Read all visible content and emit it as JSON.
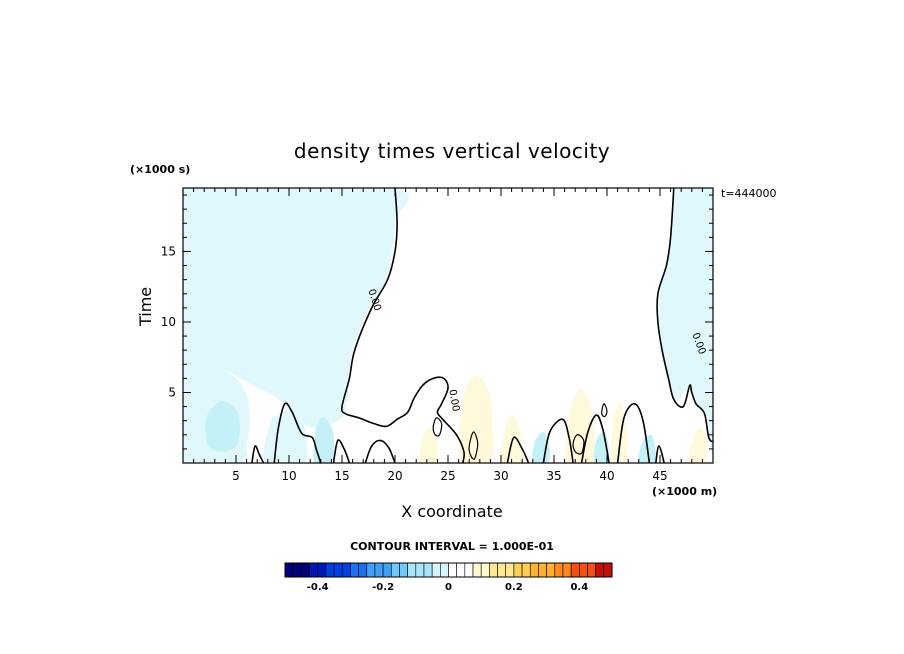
{
  "chart_data": {
    "type": "heatmap",
    "title": "density times vertical velocity",
    "xlabel": "X coordinate",
    "ylabel": "Time",
    "x_units": "(×1000 m)",
    "y_units": "(×1000 s)",
    "x_ticks": [
      "5",
      "10",
      "15",
      "20",
      "25",
      "30",
      "35",
      "40",
      "45"
    ],
    "y_ticks": [
      "5",
      "10",
      "15"
    ],
    "xlim": [
      0,
      50
    ],
    "ylim": [
      0,
      19.5
    ],
    "time_stamp": "t=444000",
    "contour_interval_label": "CONTOUR INTERVAL = 1.000E-01",
    "contour_labels": [
      "0.00",
      "0.00",
      "0.00"
    ],
    "colorbar": {
      "range": [
        -0.5,
        0.5
      ],
      "ticks": [
        "-0.4",
        "-0.2",
        "0",
        "0.2",
        "0.4"
      ],
      "colors": [
        "#00007a",
        "#0018b8",
        "#0040e0",
        "#1a70f0",
        "#40a0f8",
        "#70c8fc",
        "#a8e4fc",
        "#d8f4fc",
        "#ffffff",
        "#fff8d0",
        "#ffe890",
        "#ffd050",
        "#ffb030",
        "#ff8820",
        "#f05010",
        "#c01008"
      ]
    },
    "zero_contours": [
      {
        "name": "left",
        "points": [
          [
            20.0,
            19.5
          ],
          [
            20.2,
            17
          ],
          [
            20.0,
            15
          ],
          [
            19.3,
            13
          ],
          [
            17.8,
            11
          ],
          [
            16.2,
            8
          ],
          [
            15.7,
            6
          ],
          [
            15.0,
            4
          ],
          [
            15.3,
            3.5
          ],
          [
            16.6,
            3.2
          ],
          [
            18.0,
            2.8
          ],
          [
            19.2,
            2.6
          ],
          [
            20.2,
            3.1
          ],
          [
            21.2,
            3.6
          ],
          [
            21.8,
            4.6
          ],
          [
            22.6,
            5.5
          ],
          [
            23.6,
            6.0
          ],
          [
            24.6,
            6.0
          ],
          [
            25.0,
            5.3
          ],
          [
            24.4,
            4.2
          ],
          [
            24.0,
            3.6
          ],
          [
            24.5,
            3.1
          ],
          [
            25.8,
            2.0
          ],
          [
            26.5,
            0.8
          ],
          [
            26.4,
            0
          ]
        ]
      },
      {
        "name": "right",
        "points": [
          [
            46.3,
            19.5
          ],
          [
            46.0,
            16
          ],
          [
            45.6,
            14
          ],
          [
            44.8,
            12
          ],
          [
            44.8,
            10
          ],
          [
            45.2,
            8
          ],
          [
            45.8,
            6
          ],
          [
            46.3,
            4.5
          ],
          [
            47.2,
            4.0
          ],
          [
            47.8,
            5.5
          ],
          [
            48.0,
            5.0
          ],
          [
            48.4,
            4.2
          ],
          [
            49.2,
            3.5
          ],
          [
            49.6,
            1.8
          ],
          [
            50,
            1.5
          ]
        ]
      },
      {
        "name": "bump-1",
        "points": [
          [
            6.5,
            0
          ],
          [
            6.8,
            1.2
          ],
          [
            7.2,
            0.6
          ],
          [
            7.6,
            0
          ]
        ]
      },
      {
        "name": "bump-2",
        "points": [
          [
            8.6,
            0
          ],
          [
            9.0,
            2.5
          ],
          [
            9.6,
            4.2
          ],
          [
            10.3,
            3.6
          ],
          [
            11.2,
            2.1
          ],
          [
            12.2,
            1.8
          ],
          [
            12.6,
            0.9
          ],
          [
            13.0,
            0
          ]
        ]
      },
      {
        "name": "bump-3",
        "points": [
          [
            14.2,
            0
          ],
          [
            14.6,
            1.6
          ],
          [
            15.2,
            1.0
          ],
          [
            15.7,
            0
          ]
        ]
      },
      {
        "name": "bump-4",
        "points": [
          [
            17.2,
            0
          ],
          [
            17.8,
            1.2
          ],
          [
            18.6,
            1.6
          ],
          [
            19.4,
            1.1
          ],
          [
            20.0,
            0
          ]
        ]
      },
      {
        "name": "bump-5",
        "points": [
          [
            30.6,
            0
          ],
          [
            31.2,
            1.8
          ],
          [
            32.0,
            1.0
          ],
          [
            32.6,
            0
          ]
        ]
      },
      {
        "name": "bump-6",
        "points": [
          [
            34.0,
            0
          ],
          [
            34.6,
            2.2
          ],
          [
            35.8,
            3.1
          ],
          [
            36.4,
            1.9
          ],
          [
            36.8,
            0
          ]
        ]
      },
      {
        "name": "bump-7",
        "points": [
          [
            37.6,
            0
          ],
          [
            38.2,
            2.2
          ],
          [
            39.0,
            3.4
          ],
          [
            39.6,
            2.4
          ],
          [
            40.2,
            0
          ]
        ]
      },
      {
        "name": "bump-8",
        "points": [
          [
            41.0,
            0
          ],
          [
            41.6,
            3.2
          ],
          [
            42.6,
            4.2
          ],
          [
            43.4,
            3.0
          ],
          [
            44.0,
            0
          ]
        ]
      },
      {
        "name": "bump-9",
        "points": [
          [
            44.6,
            0
          ],
          [
            44.9,
            1.2
          ],
          [
            45.4,
            0
          ]
        ]
      }
    ],
    "closed_contours": [
      {
        "name": "loop-a",
        "points": [
          [
            27.0,
            1.2
          ],
          [
            27.4,
            2.2
          ],
          [
            27.8,
            1.4
          ],
          [
            27.5,
            0.3
          ],
          [
            27.1,
            0.6
          ]
        ]
      },
      {
        "name": "loop-b",
        "points": [
          [
            36.8,
            1.4
          ],
          [
            37.2,
            2.0
          ],
          [
            37.8,
            1.6
          ],
          [
            37.6,
            0.7
          ],
          [
            37.0,
            0.8
          ]
        ]
      },
      {
        "name": "loop-c",
        "points": [
          [
            23.6,
            2.5
          ],
          [
            23.9,
            3.2
          ],
          [
            24.4,
            2.8
          ],
          [
            24.2,
            2.0
          ],
          [
            23.8,
            2.0
          ]
        ]
      },
      {
        "name": "loop-d",
        "points": [
          [
            39.5,
            3.5
          ],
          [
            39.7,
            4.2
          ],
          [
            40.0,
            3.7
          ],
          [
            39.8,
            3.3
          ]
        ]
      }
    ],
    "shaded_regions": [
      {
        "value": -0.1,
        "points": [
          [
            0,
            0
          ],
          [
            0,
            6.5
          ],
          [
            3,
            6.8
          ],
          [
            5.5,
            5.6
          ],
          [
            6.3,
            3.5
          ],
          [
            6.0,
            1.2
          ],
          [
            5.5,
            0
          ]
        ]
      },
      {
        "value": -0.1,
        "points": [
          [
            0,
            19.5
          ],
          [
            19.8,
            19.5
          ],
          [
            20.0,
            17
          ],
          [
            19.2,
            13
          ],
          [
            17.6,
            11
          ],
          [
            16.0,
            8
          ],
          [
            15.4,
            4
          ],
          [
            14.6,
            3
          ],
          [
            12.5,
            2.5
          ],
          [
            11,
            3
          ],
          [
            9,
            4.5
          ],
          [
            6.6,
            5.5
          ],
          [
            3,
            6.8
          ],
          [
            0,
            6.5
          ]
        ]
      },
      {
        "value": -0.1,
        "points": [
          [
            46.6,
            19.5
          ],
          [
            50,
            19.5
          ],
          [
            50,
            1.5
          ],
          [
            49.4,
            3.4
          ],
          [
            48.4,
            4.2
          ],
          [
            47.6,
            5.2
          ],
          [
            46.4,
            4.4
          ],
          [
            45.5,
            6.5
          ],
          [
            45.0,
            9
          ],
          [
            45.0,
            12
          ],
          [
            45.8,
            15
          ]
        ]
      },
      {
        "value": 0.1,
        "points": [
          [
            26.2,
            0
          ],
          [
            26.4,
            4.5
          ],
          [
            27.6,
            6.2
          ],
          [
            28.8,
            5.2
          ],
          [
            29.2,
            2.8
          ],
          [
            29.0,
            0
          ]
        ]
      },
      {
        "value": 0.1,
        "points": [
          [
            36.2,
            0
          ],
          [
            36.4,
            3.2
          ],
          [
            37.4,
            5.2
          ],
          [
            38.4,
            4.2
          ],
          [
            38.8,
            2
          ],
          [
            38.6,
            0
          ]
        ]
      },
      {
        "value": 0.1,
        "points": [
          [
            30.0,
            0
          ],
          [
            30.3,
            2.2
          ],
          [
            31.0,
            3.4
          ],
          [
            31.8,
            2.4
          ],
          [
            32.0,
            0
          ]
        ]
      },
      {
        "value": 0.1,
        "points": [
          [
            40.4,
            0
          ],
          [
            40.6,
            3.0
          ],
          [
            41.2,
            4.2
          ],
          [
            41.8,
            2.6
          ],
          [
            41.8,
            0
          ]
        ]
      },
      {
        "value": 0.1,
        "points": [
          [
            47.8,
            0
          ],
          [
            48.0,
            1.5
          ],
          [
            48.8,
            2.5
          ],
          [
            49.4,
            1.6
          ],
          [
            49.2,
            0
          ]
        ]
      },
      {
        "value": -0.1,
        "points": [
          [
            7.8,
            0
          ],
          [
            8.2,
            2.8
          ],
          [
            9.0,
            3.4
          ],
          [
            10.2,
            3.8
          ],
          [
            11.4,
            2.8
          ],
          [
            11.4,
            0
          ]
        ]
      },
      {
        "value": -0.1,
        "points": [
          [
            12.4,
            0
          ],
          [
            12.6,
            2.6
          ],
          [
            13.4,
            3.2
          ],
          [
            14.2,
            2.0
          ],
          [
            14.0,
            0
          ]
        ]
      },
      {
        "value": -0.1,
        "points": [
          [
            33.0,
            0
          ],
          [
            33.2,
            1.5
          ],
          [
            34.0,
            2.2
          ],
          [
            34.6,
            1.0
          ],
          [
            34.4,
            0
          ]
        ]
      },
      {
        "value": -0.1,
        "points": [
          [
            38.8,
            0
          ],
          [
            39.0,
            1.6
          ],
          [
            39.8,
            2.2
          ],
          [
            40.2,
            0.8
          ],
          [
            40.0,
            0
          ]
        ]
      },
      {
        "value": -0.1,
        "points": [
          [
            43.0,
            0
          ],
          [
            43.3,
            1.4
          ],
          [
            44.2,
            2.0
          ],
          [
            44.6,
            0.8
          ],
          [
            44.4,
            0
          ]
        ]
      },
      {
        "value": -0.1,
        "points": [
          [
            2.4,
            1.2
          ],
          [
            2.2,
            3.2
          ],
          [
            3.6,
            4.4
          ],
          [
            5.2,
            3.5
          ],
          [
            5.2,
            1.5
          ],
          [
            4.0,
            0.8
          ]
        ]
      },
      {
        "value": 0.1,
        "points": [
          [
            22.4,
            0
          ],
          [
            22.6,
            1.8
          ],
          [
            23.4,
            2.6
          ],
          [
            24.0,
            1.2
          ],
          [
            23.8,
            0
          ]
        ]
      }
    ]
  }
}
